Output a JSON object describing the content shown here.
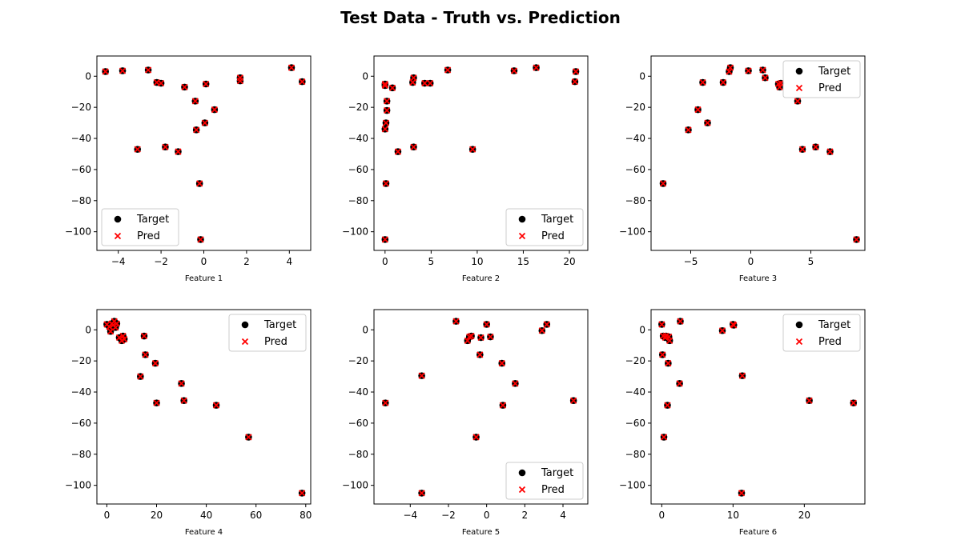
{
  "figure": {
    "title": "Test Data - Truth vs. Prediction",
    "colors": {
      "target": "#000000",
      "pred": "#ff0000"
    }
  },
  "chart_data": [
    {
      "type": "scatter",
      "xlabel": "Feature 1",
      "ylabel": "",
      "xlim": [
        -5,
        5
      ],
      "ylim": [
        -112,
        13
      ],
      "xticks": [
        -4,
        -2,
        0,
        2,
        4
      ],
      "yticks": [
        0,
        -20,
        -40,
        -60,
        -80,
        -100
      ],
      "legend": {
        "position": "lower-left",
        "entries": [
          "Target",
          "Pred"
        ]
      },
      "series": [
        {
          "name": "Target",
          "marker": "circle",
          "x": [
            -4.6,
            -3.8,
            -2.6,
            -2.2,
            -2.0,
            -0.9,
            -0.4,
            0.1,
            1.7,
            1.7,
            4.1,
            4.6,
            -3.1,
            -1.8,
            -1.2,
            -0.35,
            0.05,
            0.5,
            -0.2,
            -0.15
          ],
          "y": [
            3,
            3.5,
            4,
            -4,
            -4.5,
            -7,
            -16,
            -5,
            -1,
            -3,
            5.5,
            -3.5,
            -47,
            -45.5,
            -48.5,
            -34.5,
            -30,
            -21.5,
            -69,
            -105
          ]
        },
        {
          "name": "Pred",
          "marker": "x",
          "x": [
            -4.6,
            -3.8,
            -2.6,
            -2.2,
            -2.0,
            -0.9,
            -0.4,
            0.1,
            1.7,
            1.7,
            4.1,
            4.6,
            -3.1,
            -1.8,
            -1.2,
            -0.35,
            0.05,
            0.5,
            -0.2,
            -0.15
          ],
          "y": [
            3,
            3.5,
            4,
            -4,
            -4.5,
            -7,
            -16,
            -5,
            -1,
            -3,
            5.5,
            -3.5,
            -47,
            -45.5,
            -48.5,
            -34.5,
            -30,
            -21.5,
            -69,
            -105
          ]
        }
      ]
    },
    {
      "type": "scatter",
      "xlabel": "Feature 2",
      "ylabel": "",
      "xlim": [
        -1.2,
        22
      ],
      "ylim": [
        -112,
        13
      ],
      "xticks": [
        0,
        5,
        10,
        15,
        20
      ],
      "yticks": [
        0,
        -20,
        -40,
        -60,
        -80,
        -100
      ],
      "legend": {
        "position": "lower-right",
        "entries": [
          "Target",
          "Pred"
        ]
      },
      "series": [
        {
          "name": "Target",
          "marker": "circle",
          "x": [
            0.0,
            0.2,
            0.2,
            0.1,
            0.0,
            0.1,
            0.0,
            0.0,
            0.8,
            1.4,
            3.0,
            3.1,
            3.1,
            4.3,
            4.9,
            6.8,
            9.5,
            14.0,
            16.4,
            20.7,
            20.6
          ],
          "y": [
            -5,
            -16,
            -22,
            -30,
            -34,
            -69,
            -105,
            -6,
            -7.5,
            -48.5,
            -4,
            -1,
            -45.5,
            -4.5,
            -4.5,
            4,
            -47,
            3.5,
            5.5,
            3,
            -3.5
          ]
        },
        {
          "name": "Pred",
          "marker": "x",
          "x": [
            0.0,
            0.2,
            0.2,
            0.1,
            0.0,
            0.1,
            0.0,
            0.0,
            0.8,
            1.4,
            3.0,
            3.1,
            3.1,
            4.3,
            4.9,
            6.8,
            9.5,
            14.0,
            16.4,
            20.7,
            20.6
          ],
          "y": [
            -5,
            -16,
            -22,
            -30,
            -34,
            -69,
            -105,
            -6,
            -7.5,
            -48.5,
            -4,
            -1,
            -45.5,
            -4.5,
            -4.5,
            4,
            -47,
            3.5,
            5.5,
            3,
            -3.5
          ]
        }
      ]
    },
    {
      "type": "scatter",
      "xlabel": "Feature 3",
      "ylabel": "",
      "xlim": [
        -8.3,
        9.5
      ],
      "ylim": [
        -112,
        13
      ],
      "xticks": [
        -5,
        0,
        5
      ],
      "yticks": [
        0,
        -20,
        -40,
        -60,
        -80,
        -100
      ],
      "legend": {
        "position": "upper-right",
        "entries": [
          "Target",
          "Pred"
        ]
      },
      "series": [
        {
          "name": "Target",
          "marker": "circle",
          "x": [
            -7.3,
            -5.2,
            -4.4,
            -4.0,
            -3.6,
            -2.3,
            -1.8,
            -1.7,
            -0.2,
            1.0,
            1.2,
            2.3,
            2.4,
            2.5,
            3.9,
            4.3,
            5.4,
            6.6,
            8.8
          ],
          "y": [
            -69,
            -34.5,
            -21.5,
            -4,
            -30,
            -4,
            3,
            5.5,
            3.5,
            4,
            -1,
            -5,
            -7,
            -4.5,
            -16,
            -47,
            -45.5,
            -48.5,
            -105
          ]
        },
        {
          "name": "Pred",
          "marker": "x",
          "x": [
            -7.3,
            -5.2,
            -4.4,
            -4.0,
            -3.6,
            -2.3,
            -1.8,
            -1.7,
            -0.2,
            1.0,
            1.2,
            2.3,
            2.4,
            2.5,
            3.9,
            4.3,
            5.4,
            6.6,
            8.8
          ],
          "y": [
            -69,
            -34.5,
            -21.5,
            -4,
            -30,
            -4,
            3,
            5.5,
            3.5,
            4,
            -1,
            -5,
            -7,
            -4.5,
            -16,
            -47,
            -45.5,
            -48.5,
            -105
          ]
        }
      ]
    },
    {
      "type": "scatter",
      "xlabel": "Feature 4",
      "ylabel": "",
      "xlim": [
        -4,
        82
      ],
      "ylim": [
        -112,
        13
      ],
      "xticks": [
        0,
        20,
        40,
        60,
        80
      ],
      "yticks": [
        0,
        -20,
        -40,
        -60,
        -80,
        -100
      ],
      "legend": {
        "position": "upper-right",
        "entries": [
          "Target",
          "Pred"
        ]
      },
      "series": [
        {
          "name": "Target",
          "marker": "circle",
          "x": [
            0,
            1,
            1.5,
            2,
            2.5,
            3,
            3.5,
            4,
            5,
            6,
            6.5,
            7,
            13.5,
            15,
            15.5,
            19.5,
            20,
            30,
            31,
            44,
            57,
            78.5
          ],
          "y": [
            3.5,
            2,
            -1,
            4,
            3,
            5.5,
            1.5,
            4,
            -5,
            -7,
            -4,
            -6,
            -30,
            -4,
            -16,
            -21.5,
            -47,
            -34.5,
            -45.5,
            -48.5,
            -69,
            -105
          ]
        },
        {
          "name": "Pred",
          "marker": "x",
          "x": [
            0,
            1,
            1.5,
            2,
            2.5,
            3,
            3.5,
            4,
            5,
            6,
            6.5,
            7,
            13.5,
            15,
            15.5,
            19.5,
            20,
            30,
            31,
            44,
            57,
            78.5
          ],
          "y": [
            3.5,
            2,
            -1,
            4,
            3,
            5.5,
            1.5,
            4,
            -5,
            -7,
            -4,
            -6,
            -30,
            -4,
            -16,
            -21.5,
            -47,
            -34.5,
            -45.5,
            -48.5,
            -69,
            -105
          ]
        }
      ]
    },
    {
      "type": "scatter",
      "xlabel": "Feature 5",
      "ylabel": "",
      "xlim": [
        -5.9,
        5.3
      ],
      "ylim": [
        -112,
        13
      ],
      "xticks": [
        -4,
        -2,
        0,
        2,
        4
      ],
      "yticks": [
        0,
        -20,
        -40,
        -60,
        -80,
        -100
      ],
      "legend": {
        "position": "lower-right",
        "entries": [
          "Target",
          "Pred"
        ]
      },
      "series": [
        {
          "name": "Target",
          "marker": "circle",
          "x": [
            -5.3,
            -3.4,
            -3.4,
            -1.6,
            -1.0,
            -0.9,
            -0.8,
            -0.55,
            -0.35,
            -0.3,
            0.0,
            0.2,
            0.8,
            0.85,
            1.5,
            2.9,
            3.15,
            4.55
          ],
          "y": [
            -47,
            -29.5,
            -105,
            5.5,
            -7,
            -4.5,
            -4,
            -69,
            -16,
            -5,
            3.5,
            -4.5,
            -21.5,
            -48.5,
            -34.5,
            -0.5,
            3.5,
            -45.5
          ]
        },
        {
          "name": "Pred",
          "marker": "x",
          "x": [
            -5.3,
            -3.4,
            -3.4,
            -1.6,
            -1.0,
            -0.9,
            -0.8,
            -0.55,
            -0.35,
            -0.3,
            0.0,
            0.2,
            0.8,
            0.85,
            1.5,
            2.9,
            3.15,
            4.55
          ],
          "y": [
            -47,
            -29.5,
            -105,
            5.5,
            -7,
            -4.5,
            -4,
            -69,
            -16,
            -5,
            3.5,
            -4.5,
            -21.5,
            -48.5,
            -34.5,
            -0.5,
            3.5,
            -45.5
          ]
        }
      ]
    },
    {
      "type": "scatter",
      "xlabel": "Feature 6",
      "ylabel": "",
      "xlim": [
        -1.5,
        28.5
      ],
      "ylim": [
        -112,
        13
      ],
      "xticks": [
        0,
        10,
        20
      ],
      "yticks": [
        0,
        -20,
        -40,
        -60,
        -80,
        -100
      ],
      "legend": {
        "position": "upper-right",
        "entries": [
          "Target",
          "Pred"
        ]
      },
      "series": [
        {
          "name": "Target",
          "marker": "circle",
          "x": [
            0.0,
            0.1,
            0.2,
            0.3,
            0.5,
            0.6,
            0.8,
            0.9,
            1.0,
            1.1,
            2.5,
            2.6,
            8.5,
            10.0,
            10.1,
            11.2,
            11.3,
            20.7,
            26.9
          ],
          "y": [
            3.5,
            -16,
            -4,
            -69,
            -5,
            -4,
            -48.5,
            -21.5,
            -4.5,
            -7,
            -34.5,
            5.5,
            -0.5,
            3.5,
            3,
            -105,
            -29.5,
            -45.5,
            -47
          ]
        },
        {
          "name": "Pred",
          "marker": "x",
          "x": [
            0.0,
            0.1,
            0.2,
            0.3,
            0.5,
            0.6,
            0.8,
            0.9,
            1.0,
            1.1,
            2.5,
            2.6,
            8.5,
            10.0,
            10.1,
            11.2,
            11.3,
            20.7,
            26.9
          ],
          "y": [
            3.5,
            -16,
            -4,
            -69,
            -5,
            -4,
            -48.5,
            -21.5,
            -4.5,
            -7,
            -34.5,
            5.5,
            -0.5,
            3.5,
            3,
            -105,
            -29.5,
            -45.5,
            -47
          ]
        }
      ]
    }
  ]
}
